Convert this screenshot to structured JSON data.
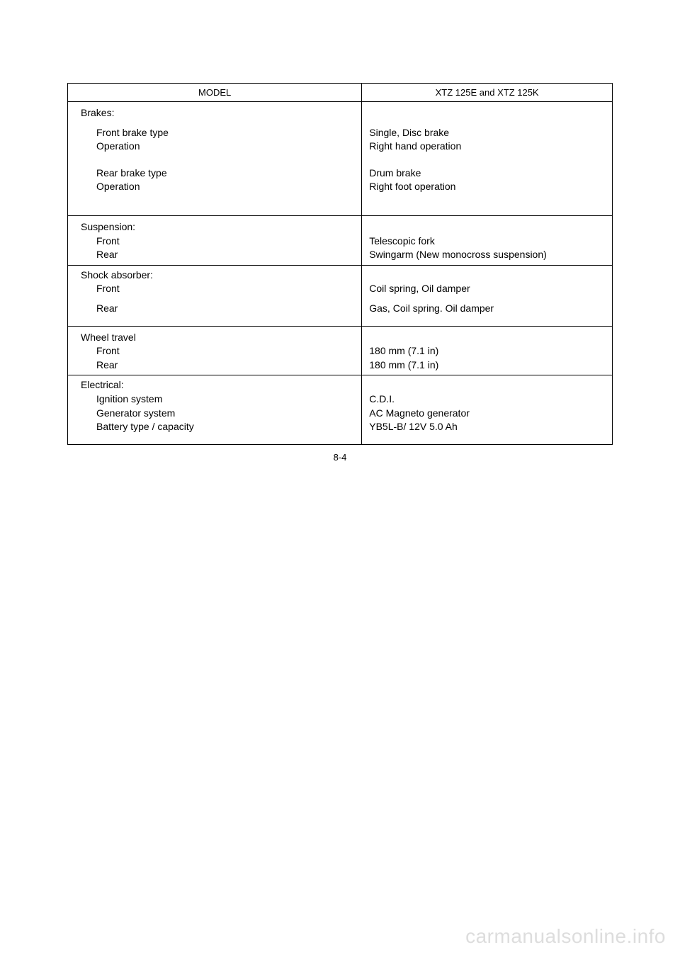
{
  "header": {
    "model_label": "MODEL",
    "model_value": "XTZ 125E and XTZ 125K"
  },
  "brakes": {
    "title": "Brakes:",
    "front_type_label": "Front brake type",
    "front_type_value": "Single, Disc brake",
    "front_op_label": "Operation",
    "front_op_value": "Right hand operation",
    "rear_type_label": "Rear brake type",
    "rear_type_value": "Drum brake",
    "rear_op_label": "Operation",
    "rear_op_value": "Right foot operation"
  },
  "suspension": {
    "title": "Suspension:",
    "front_label": "Front",
    "front_value": "Telescopic fork",
    "rear_label": "Rear",
    "rear_value": "Swingarm (New monocross suspension)"
  },
  "shock": {
    "title": "Shock absorber:",
    "front_label": "Front",
    "front_value": "Coil spring, Oil damper",
    "rear_label": "Rear",
    "rear_value": "Gas, Coil spring. Oil damper"
  },
  "wheel": {
    "title": "Wheel travel",
    "front_label": "Front",
    "front_value": "180  mm (7.1 in)",
    "rear_label": "Rear",
    "rear_value": "180  mm (7.1 in)"
  },
  "electrical": {
    "title": "Electrical:",
    "ignition_label": "Ignition system",
    "ignition_value": "C.D.I.",
    "generator_label": "Generator system",
    "generator_value": "AC Magneto generator",
    "battery_label": "Battery type  /  capacity",
    "battery_value": "YB5L-B/ 12V 5.0 Ah"
  },
  "page_number": "8-4",
  "watermark": "carmanualsonline.info"
}
